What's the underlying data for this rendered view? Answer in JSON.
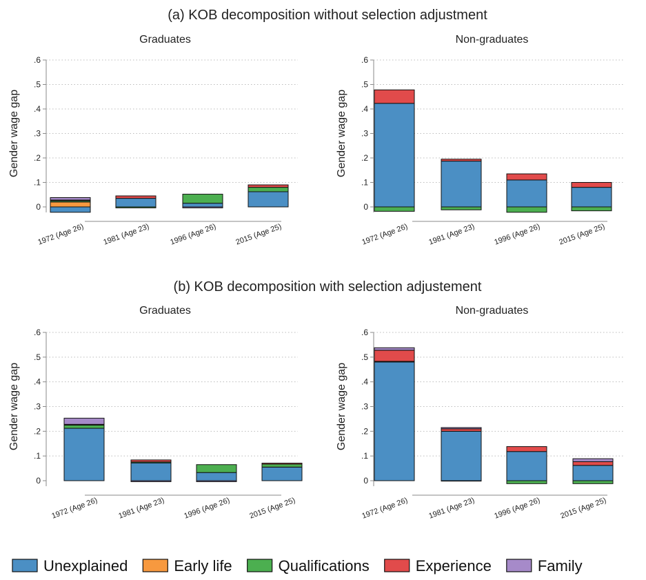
{
  "figure": {
    "panel_titles": [
      "(a) KOB decomposition without selection adjustment",
      "(b) KOB decomposition with selection adjustement"
    ]
  },
  "colors": {
    "Unexplained": "#4b8fc4",
    "Early life": "#f7993f",
    "Qualifications": "#4caf50",
    "Experience": "#e14b4b",
    "Family": "#a68ac9"
  },
  "legend": {
    "entries": [
      "Unexplained",
      "Early life",
      "Qualifications",
      "Experience",
      "Family"
    ]
  },
  "chart_data": [
    {
      "type": "bar",
      "stacked": true,
      "panel": "a",
      "title": "Graduates",
      "ylabel": "Gender wage gap",
      "ylim": [
        0,
        0.6
      ],
      "yticks": [
        0,
        0.1,
        0.2,
        0.3,
        0.4,
        0.5,
        0.6
      ],
      "ytick_labels": [
        "0",
        ".1",
        ".2",
        ".3",
        ".4",
        ".5",
        ".6"
      ],
      "categories": [
        "1972 (Age 26)",
        "1981 (Age 23)",
        "1996 (Age 26)",
        "2015 (Age 25)"
      ],
      "series": [
        {
          "name": "Unexplained",
          "values": [
            -0.022,
            0.035,
            0.015,
            0.062
          ]
        },
        {
          "name": "Early life",
          "values": [
            0.02,
            0.0,
            0.0,
            0.0
          ]
        },
        {
          "name": "Qualifications",
          "values": [
            0.005,
            -0.004,
            0.037,
            0.018
          ]
        },
        {
          "name": "Experience",
          "values": [
            0.003,
            0.01,
            0.0,
            0.01
          ]
        },
        {
          "name": "Family",
          "values": [
            0.01,
            0.0,
            -0.004,
            0.0
          ]
        }
      ]
    },
    {
      "type": "bar",
      "stacked": true,
      "panel": "a",
      "title": "Non-graduates",
      "ylabel": "Gender wage gap",
      "ylim": [
        0,
        0.6
      ],
      "yticks": [
        0,
        0.1,
        0.2,
        0.3,
        0.4,
        0.5,
        0.6
      ],
      "ytick_labels": [
        "0",
        ".1",
        ".2",
        ".3",
        ".4",
        ".5",
        ".6"
      ],
      "categories": [
        "1972 (Age 26)",
        "1981 (Age 23)",
        "1996 (Age 26)",
        "2015 (Age 25)"
      ],
      "series": [
        {
          "name": "Unexplained",
          "values": [
            0.423,
            0.187,
            0.11,
            0.08
          ]
        },
        {
          "name": "Early life",
          "values": [
            0.0,
            0.0,
            0.0,
            0.0
          ]
        },
        {
          "name": "Qualifications",
          "values": [
            -0.018,
            -0.012,
            -0.022,
            -0.016
          ]
        },
        {
          "name": "Experience",
          "values": [
            0.055,
            0.008,
            0.025,
            0.02
          ]
        },
        {
          "name": "Family",
          "values": [
            0.0,
            0.0,
            0.0,
            0.0
          ]
        }
      ]
    },
    {
      "type": "bar",
      "stacked": true,
      "panel": "b",
      "title": "Graduates",
      "ylabel": "Gender wage gap",
      "ylim": [
        0,
        0.6
      ],
      "yticks": [
        0,
        0.1,
        0.2,
        0.3,
        0.4,
        0.5,
        0.6
      ],
      "ytick_labels": [
        "0",
        ".1",
        ".2",
        ".3",
        ".4",
        ".5",
        ".6"
      ],
      "categories": [
        "1972 (Age 26)",
        "1981 (Age 23)",
        "1996 (Age 26)",
        "2015 (Age 25)"
      ],
      "series": [
        {
          "name": "Unexplained",
          "values": [
            0.212,
            0.072,
            0.033,
            0.055
          ]
        },
        {
          "name": "Early life",
          "values": [
            0.0,
            0.0,
            0.0,
            0.0
          ]
        },
        {
          "name": "Qualifications",
          "values": [
            0.013,
            0.004,
            0.032,
            0.012
          ]
        },
        {
          "name": "Experience",
          "values": [
            0.003,
            0.008,
            0.0,
            0.004
          ]
        },
        {
          "name": "Family",
          "values": [
            0.025,
            -0.004,
            -0.004,
            0.0
          ]
        }
      ]
    },
    {
      "type": "bar",
      "stacked": true,
      "panel": "b",
      "title": "Non-graduates",
      "ylabel": "Gender wage gap",
      "ylim": [
        0,
        0.6
      ],
      "yticks": [
        0,
        0.1,
        0.2,
        0.3,
        0.4,
        0.5,
        0.6
      ],
      "ytick_labels": [
        "0",
        ".1",
        ".2",
        ".3",
        ".4",
        ".5",
        ".6"
      ],
      "categories": [
        "1972 (Age 26)",
        "1981 (Age 23)",
        "1996 (Age 26)",
        "2015 (Age 25)"
      ],
      "series": [
        {
          "name": "Unexplained",
          "values": [
            0.48,
            0.2,
            0.118,
            0.062
          ]
        },
        {
          "name": "Early life",
          "values": [
            0.0,
            0.0,
            0.0,
            0.0
          ]
        },
        {
          "name": "Qualifications",
          "values": [
            0.003,
            -0.001,
            -0.012,
            -0.012
          ]
        },
        {
          "name": "Experience",
          "values": [
            0.045,
            0.01,
            0.02,
            0.015
          ]
        },
        {
          "name": "Family",
          "values": [
            0.01,
            0.005,
            0.0,
            0.012
          ]
        }
      ]
    }
  ]
}
